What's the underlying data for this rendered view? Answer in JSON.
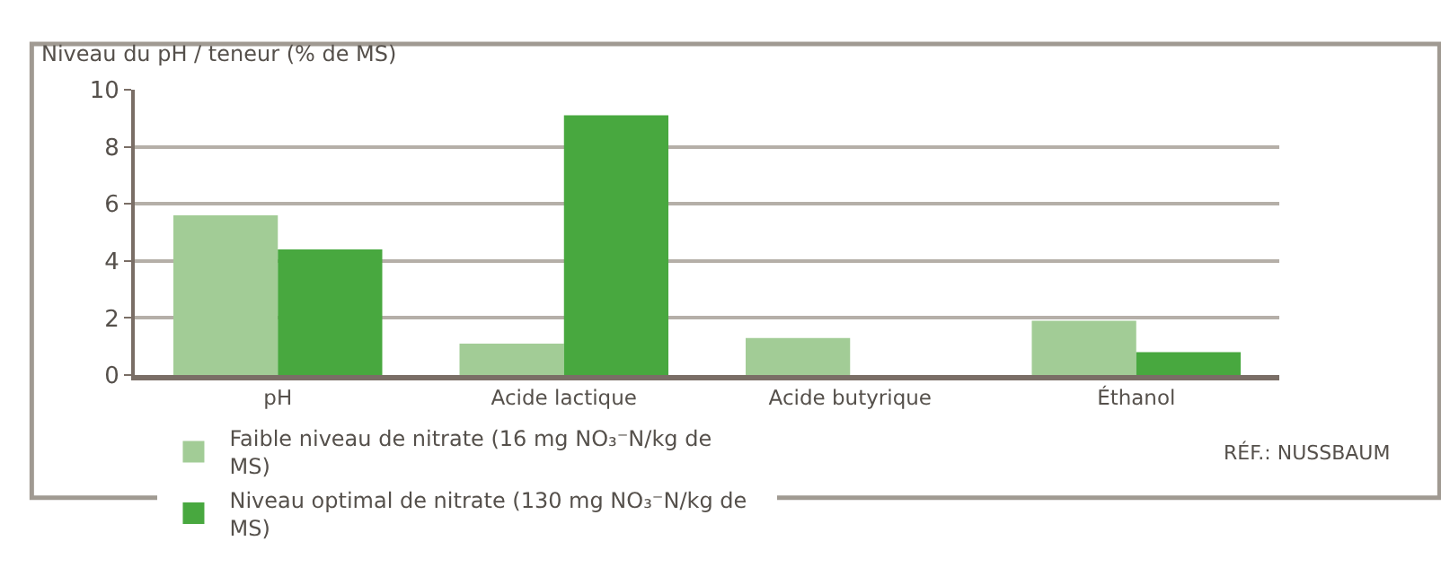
{
  "chart_data": {
    "type": "bar",
    "ylabel": "Niveau du pH / teneur (% de MS)",
    "categories": [
      "pH",
      "Acide lactique",
      "Acide butyrique",
      "Éthanol"
    ],
    "series": [
      {
        "name": "Faible niveau de nitrate (16 mg NO₃⁻N/kg de MS)",
        "color": "#a2cc96",
        "values": [
          5.6,
          1.1,
          1.3,
          1.9
        ]
      },
      {
        "name": "Niveau optimal de nitrate (130 mg NO₃⁻N/kg de MS)",
        "color": "#48a83f",
        "values": [
          4.4,
          9.1,
          null,
          0.8
        ]
      }
    ],
    "ylim": [
      0,
      10
    ],
    "yticks": [
      0,
      2,
      4,
      6,
      8,
      10
    ],
    "grid": "y",
    "legend": "bottom left",
    "annotations": [
      "RÉF.: NUSSBAUM"
    ]
  }
}
